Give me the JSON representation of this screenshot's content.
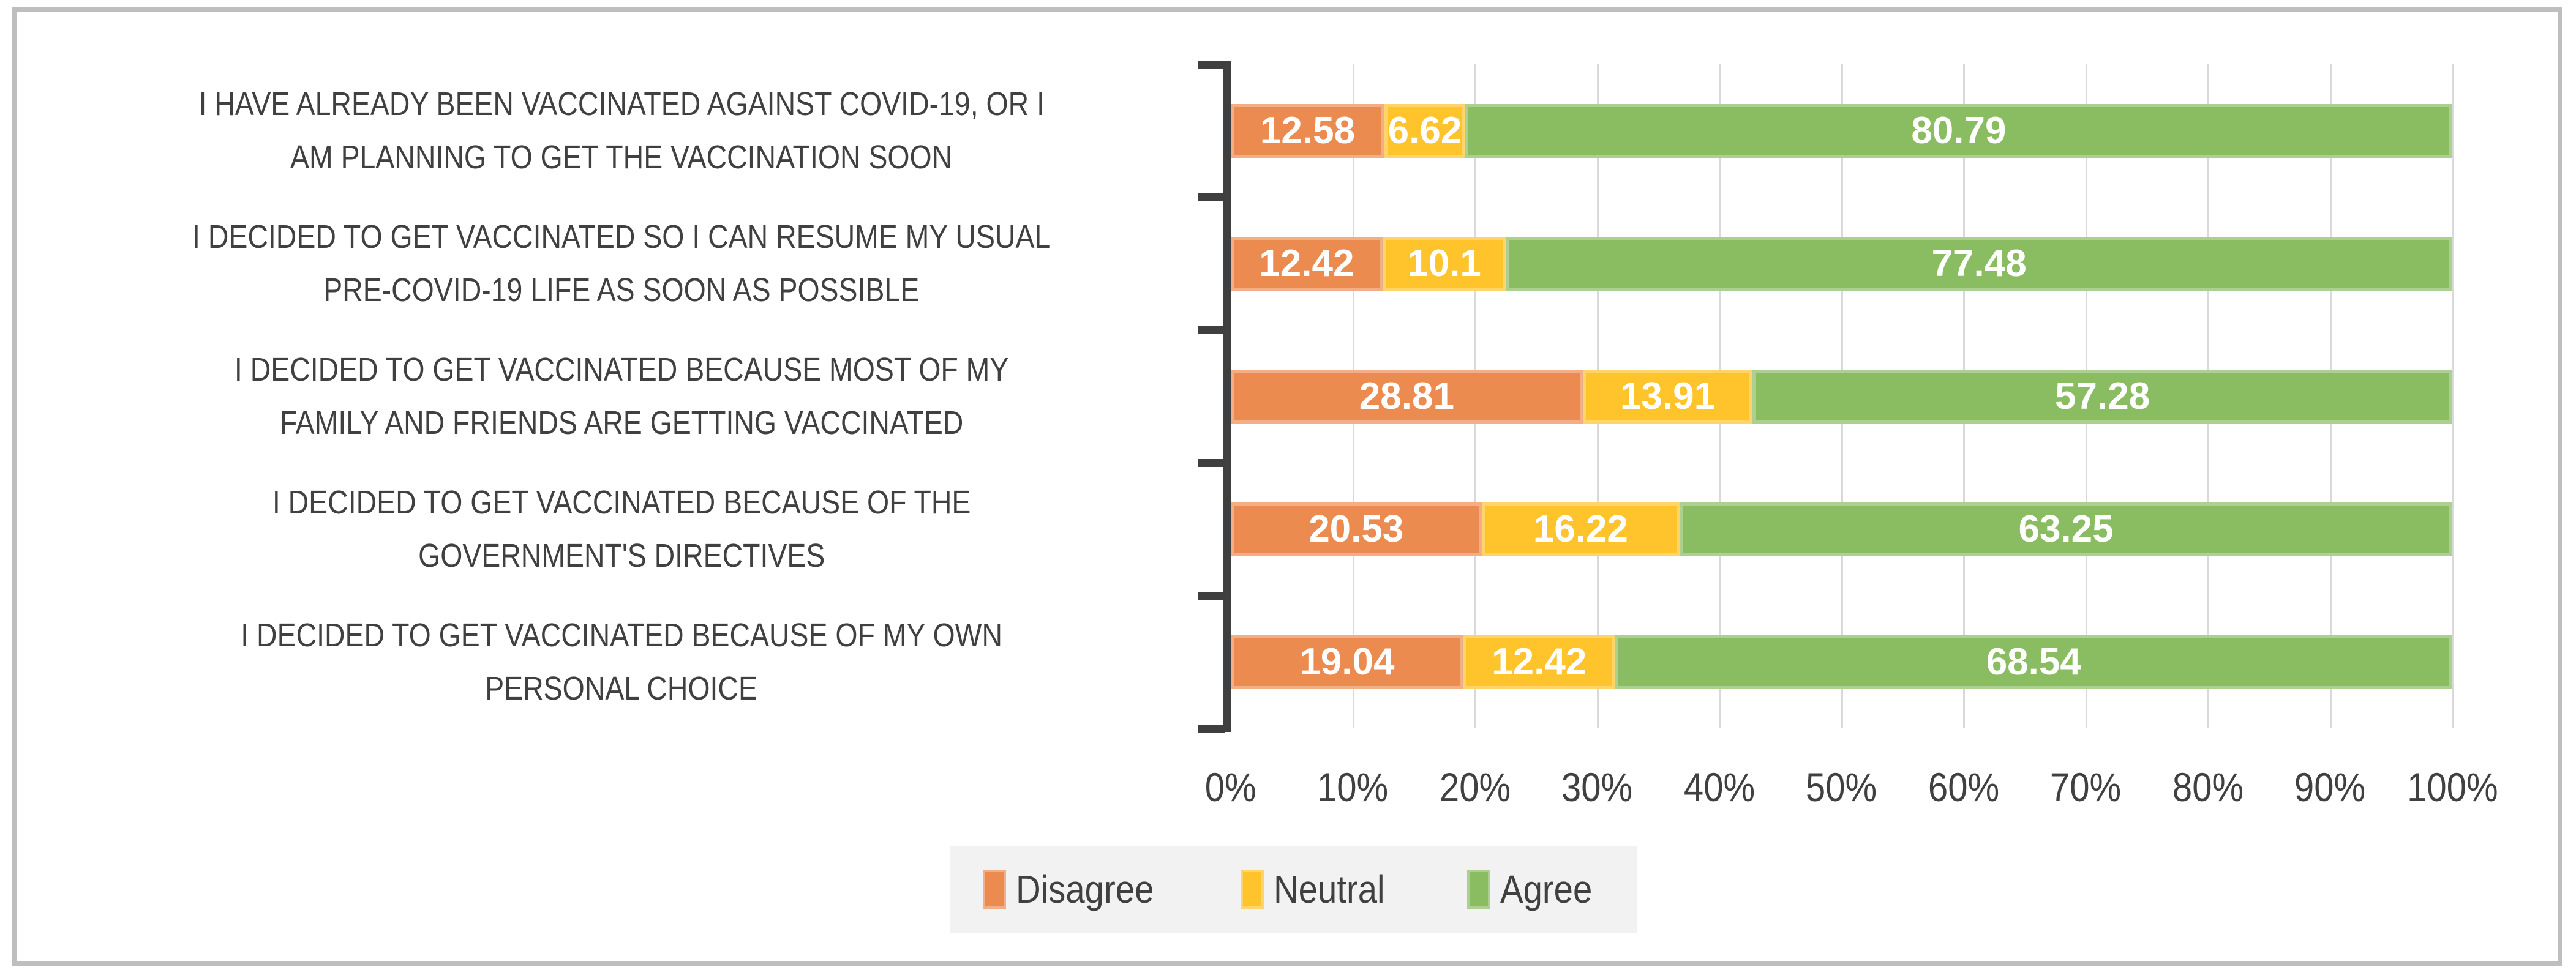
{
  "chart_data": {
    "type": "bar",
    "orientation": "horizontal",
    "stacked": true,
    "unit": "percent",
    "categories": [
      {
        "text": "I HAVE ALREADY BEEN VACCINATED AGAINST COVID-19, OR I AM PLANNING TO GET THE VACCINATION SOON",
        "lines": [
          "I HAVE ALREADY BEEN VACCINATED AGAINST COVID-19, OR I",
          "AM PLANNING TO GET THE VACCINATION SOON"
        ]
      },
      {
        "text": "I DECIDED TO GET VACCINATED SO I CAN RESUME MY USUAL PRE-COVID-19 LIFE AS SOON AS POSSIBLE",
        "lines": [
          "I DECIDED TO GET VACCINATED SO I CAN RESUME MY USUAL",
          "PRE-COVID-19 LIFE AS SOON AS POSSIBLE"
        ]
      },
      {
        "text": "I DECIDED TO GET VACCINATED BECAUSE MOST OF MY FAMILY AND FRIENDS ARE GETTING VACCINATED",
        "lines": [
          "I DECIDED TO GET VACCINATED BECAUSE MOST OF MY",
          "FAMILY AND FRIENDS ARE GETTING VACCINATED"
        ]
      },
      {
        "text": "I DECIDED TO GET VACCINATED BECAUSE OF THE GOVERNMENT'S DIRECTIVES",
        "lines": [
          "I DECIDED TO GET VACCINATED BECAUSE OF THE",
          "GOVERNMENT'S DIRECTIVES"
        ]
      },
      {
        "text": "I DECIDED TO GET VACCINATED BECAUSE OF MY OWN PERSONAL CHOICE",
        "lines": [
          "I DECIDED TO GET VACCINATED BECAUSE OF MY OWN",
          "PERSONAL CHOICE"
        ]
      }
    ],
    "series": [
      {
        "name": "Disagree",
        "color": "#EC8B50",
        "values": [
          12.58,
          12.42,
          28.81,
          20.53,
          19.04
        ]
      },
      {
        "name": "Neutral",
        "color": "#FFC32C",
        "values": [
          6.62,
          10.1,
          13.91,
          16.22,
          12.42
        ]
      },
      {
        "name": "Agree",
        "color": "#8ABC62",
        "values": [
          80.79,
          77.48,
          57.28,
          63.25,
          68.54
        ]
      }
    ],
    "value_labels": [
      "12.58",
      "6.62",
      "80.79",
      "12.42",
      "10.1",
      "77.48",
      "28.81",
      "13.91",
      "57.28",
      "20.53",
      "16.22",
      "63.25",
      "19.04",
      "12.42",
      "68.54"
    ],
    "x_ticks": [
      "0%",
      "10%",
      "20%",
      "30%",
      "40%",
      "50%",
      "60%",
      "70%",
      "80%",
      "90%",
      "100%"
    ],
    "xlim": [
      0,
      100
    ],
    "xlabel": "",
    "ylabel": "",
    "grid": true,
    "legend": [
      "Disagree",
      "Neutral",
      "Agree"
    ],
    "legend_position": "bottom"
  },
  "colors": {
    "disagree": "#EC8B50",
    "neutral": "#FFC32C",
    "agree": "#8ABC62",
    "axis": "#3F3F3F",
    "gridline": "#D9D9D9",
    "text": "#404040",
    "bar_value_text": "#FFFFFF",
    "legend_background": "#F2F2F2",
    "frame_border": "#BEBEBE"
  }
}
